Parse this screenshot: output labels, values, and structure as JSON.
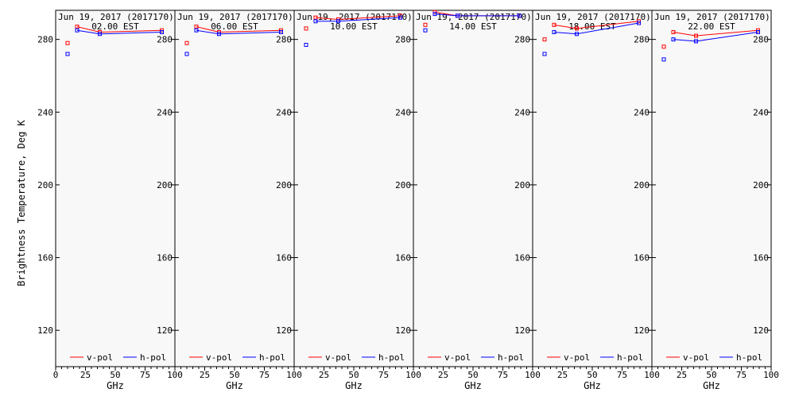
{
  "ylabel": "Brightness Temperature, Deg K",
  "colors": {
    "v_pol": "#ff0000",
    "h_pol": "#0000ff",
    "plot_bg": "#f8f8f8",
    "axis": "#000000"
  },
  "legend_labels": [
    "v-pol",
    "h-pol"
  ],
  "chart_data": [
    {
      "type": "line",
      "title": "Jun 19, 2017 (2017170)",
      "subtitle": "02.00 EST",
      "xlabel": "GHz",
      "xlim": [
        0,
        100
      ],
      "ylim": [
        100,
        296
      ],
      "xticks": [
        0,
        25,
        50,
        75,
        100
      ],
      "yticks": [
        120,
        160,
        200,
        240,
        280
      ],
      "series": [
        {
          "name": "v-pol",
          "x": [
            10,
            18,
            37,
            89
          ],
          "y": [
            278,
            287,
            284,
            285
          ]
        },
        {
          "name": "h-pol",
          "x": [
            10,
            18,
            37,
            89
          ],
          "y": [
            272,
            285,
            283,
            284
          ]
        }
      ]
    },
    {
      "type": "line",
      "title": "Jun 19, 2017 (2017170)",
      "subtitle": "06.00 EST",
      "xlabel": "GHz",
      "xlim": [
        0,
        100
      ],
      "ylim": [
        100,
        296
      ],
      "xticks": [
        0,
        25,
        50,
        75,
        100
      ],
      "yticks": [
        120,
        160,
        200,
        240,
        280
      ],
      "series": [
        {
          "name": "v-pol",
          "x": [
            10,
            18,
            37,
            89
          ],
          "y": [
            278,
            287,
            284,
            285
          ]
        },
        {
          "name": "h-pol",
          "x": [
            10,
            18,
            37,
            89
          ],
          "y": [
            272,
            285,
            283,
            284
          ]
        }
      ]
    },
    {
      "type": "line",
      "title": "Jun 19, 2017 (2017170)",
      "subtitle": "10.00 EST",
      "xlabel": "GHz",
      "xlim": [
        0,
        100
      ],
      "ylim": [
        100,
        296
      ],
      "xticks": [
        0,
        25,
        50,
        75,
        100
      ],
      "yticks": [
        120,
        160,
        200,
        240,
        280
      ],
      "series": [
        {
          "name": "v-pol",
          "x": [
            10,
            18,
            37,
            89
          ],
          "y": [
            286,
            292,
            291,
            293
          ]
        },
        {
          "name": "h-pol",
          "x": [
            10,
            18,
            37,
            89
          ],
          "y": [
            277,
            290,
            290,
            292
          ]
        }
      ]
    },
    {
      "type": "line",
      "title": "Jun 19, 2017 (2017170)",
      "subtitle": "14.00 EST",
      "xlabel": "GHz",
      "xlim": [
        0,
        100
      ],
      "ylim": [
        100,
        296
      ],
      "xticks": [
        0,
        25,
        50,
        75,
        100
      ],
      "yticks": [
        120,
        160,
        200,
        240,
        280
      ],
      "series": [
        {
          "name": "v-pol",
          "x": [
            10,
            18,
            37,
            89
          ],
          "y": [
            288,
            295,
            293,
            293
          ]
        },
        {
          "name": "h-pol",
          "x": [
            10,
            18,
            37,
            89
          ],
          "y": [
            285,
            294,
            293,
            293
          ]
        }
      ]
    },
    {
      "type": "line",
      "title": "Jun 19, 2017 (2017170)",
      "subtitle": "18.00 EST",
      "xlabel": "GHz",
      "xlim": [
        0,
        100
      ],
      "ylim": [
        100,
        296
      ],
      "xticks": [
        0,
        25,
        50,
        75,
        100
      ],
      "yticks": [
        120,
        160,
        200,
        240,
        280
      ],
      "series": [
        {
          "name": "v-pol",
          "x": [
            10,
            18,
            37,
            89
          ],
          "y": [
            280,
            288,
            286,
            290
          ]
        },
        {
          "name": "h-pol",
          "x": [
            10,
            18,
            37,
            89
          ],
          "y": [
            272,
            284,
            283,
            289
          ]
        }
      ]
    },
    {
      "type": "line",
      "title": "Jun 19, 2017 (2017170)",
      "subtitle": "22.00 EST",
      "xlabel": "GHz",
      "xlim": [
        0,
        100
      ],
      "ylim": [
        100,
        296
      ],
      "xticks": [
        0,
        25,
        50,
        75,
        100
      ],
      "yticks": [
        120,
        160,
        200,
        240,
        280
      ],
      "series": [
        {
          "name": "v-pol",
          "x": [
            10,
            18,
            37,
            89
          ],
          "y": [
            276,
            284,
            282,
            285
          ]
        },
        {
          "name": "h-pol",
          "x": [
            10,
            18,
            37,
            89
          ],
          "y": [
            269,
            280,
            279,
            284
          ]
        }
      ]
    }
  ]
}
